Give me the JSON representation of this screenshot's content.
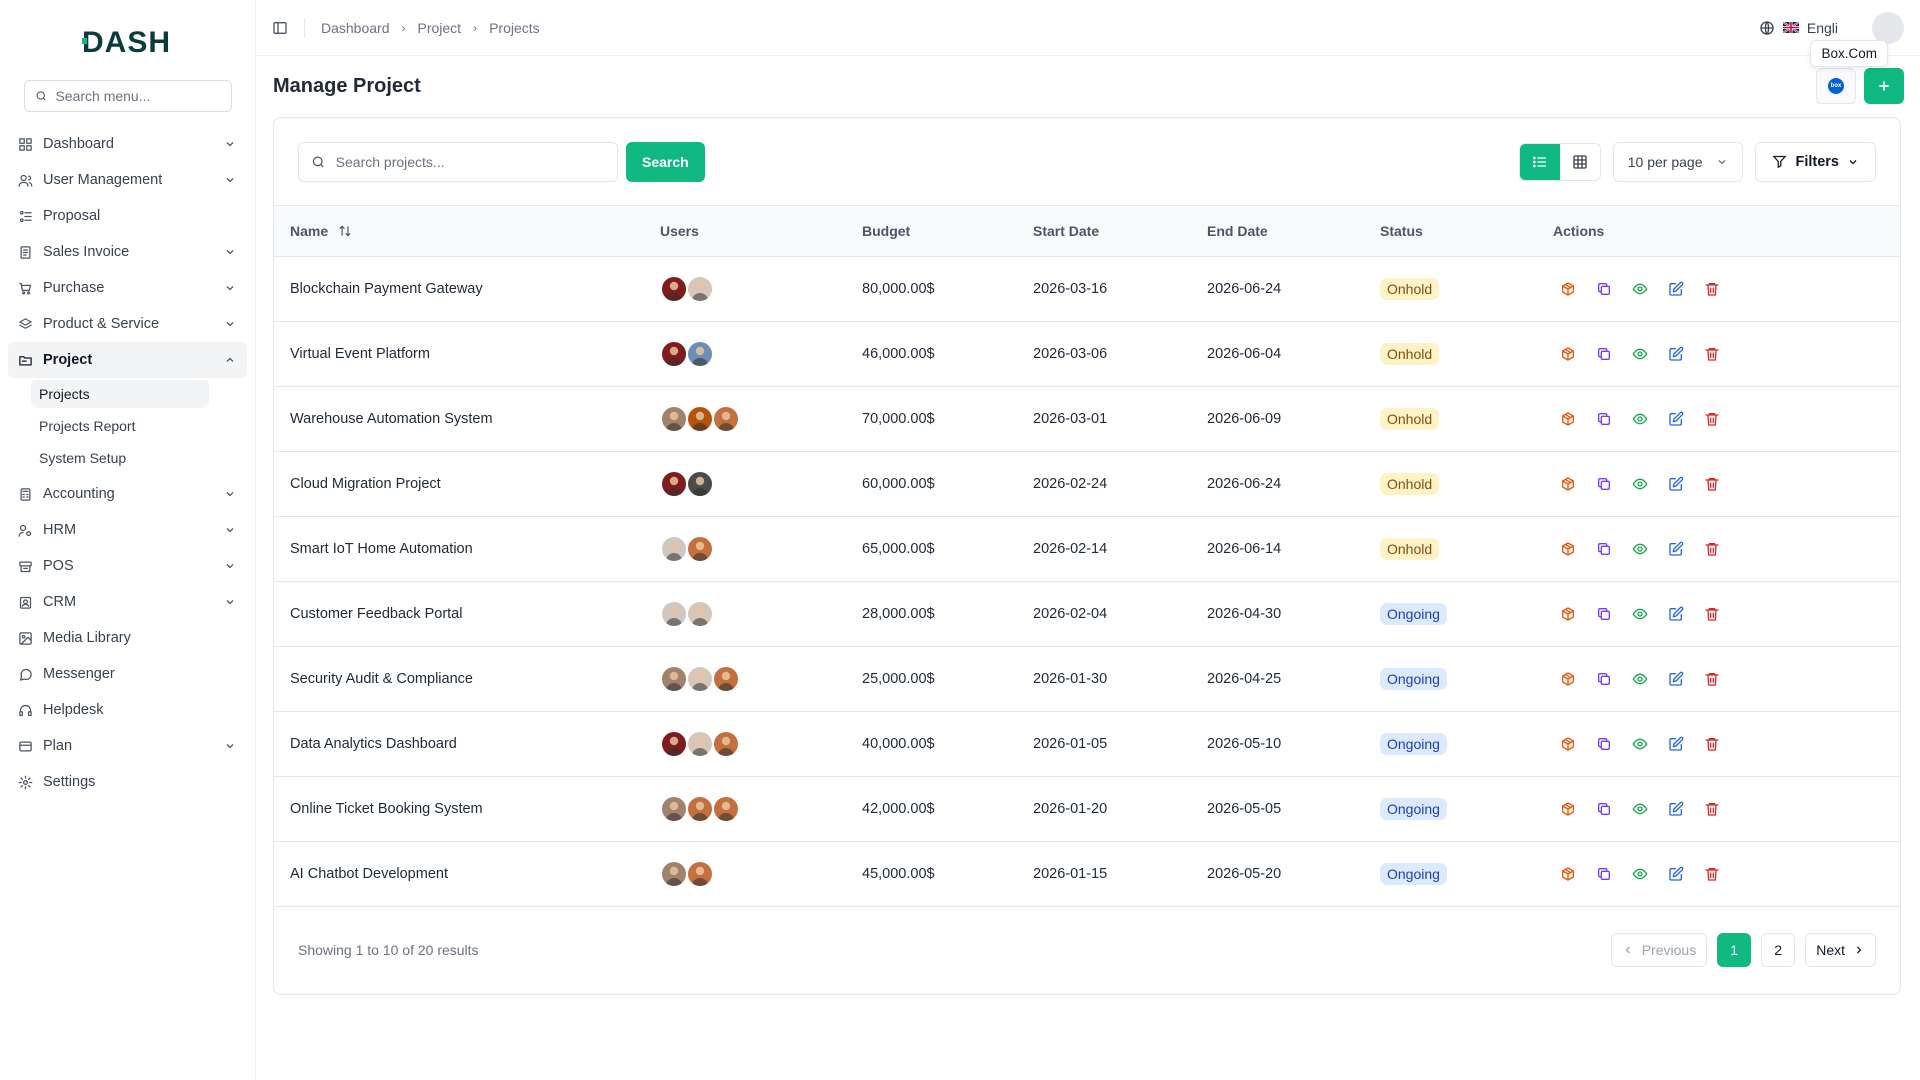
{
  "brand": {
    "logo_text": "DASH"
  },
  "sidebar": {
    "search_placeholder": "Search menu...",
    "items": [
      {
        "label": "Dashboard",
        "icon": "grid-icon",
        "has_chevron": true
      },
      {
        "label": "User Management",
        "icon": "users-icon",
        "has_chevron": true
      },
      {
        "label": "Proposal",
        "icon": "proposal-icon",
        "has_chevron": false
      },
      {
        "label": "Sales Invoice",
        "icon": "invoice-icon",
        "has_chevron": true
      },
      {
        "label": "Purchase",
        "icon": "cart-icon",
        "has_chevron": true
      },
      {
        "label": "Product & Service",
        "icon": "layers-icon",
        "has_chevron": true
      },
      {
        "label": "Project",
        "icon": "folder-icon",
        "has_chevron": true,
        "active": true,
        "children": [
          {
            "label": "Projects",
            "active": true
          },
          {
            "label": "Projects Report"
          },
          {
            "label": "System Setup"
          }
        ]
      },
      {
        "label": "Accounting",
        "icon": "calculator-icon",
        "has_chevron": true
      },
      {
        "label": "HRM",
        "icon": "hrm-icon",
        "has_chevron": true
      },
      {
        "label": "POS",
        "icon": "pos-icon",
        "has_chevron": true
      },
      {
        "label": "CRM",
        "icon": "crm-icon",
        "has_chevron": true
      },
      {
        "label": "Media Library",
        "icon": "image-icon",
        "has_chevron": false
      },
      {
        "label": "Messenger",
        "icon": "message-icon",
        "has_chevron": false
      },
      {
        "label": "Helpdesk",
        "icon": "headset-icon",
        "has_chevron": false
      },
      {
        "label": "Plan",
        "icon": "card-icon",
        "has_chevron": true
      },
      {
        "label": "Settings",
        "icon": "gear-icon",
        "has_chevron": false
      }
    ]
  },
  "topbar": {
    "breadcrumb": [
      "Dashboard",
      "Project",
      "Projects"
    ],
    "language": "Engli",
    "tooltip": "Box.Com"
  },
  "page": {
    "title": "Manage Project"
  },
  "toolbar": {
    "search_placeholder": "Search projects...",
    "search_button": "Search",
    "per_page": "10 per page",
    "filters": "Filters"
  },
  "table": {
    "columns": [
      "Name",
      "Users",
      "Budget",
      "Start Date",
      "End Date",
      "Status",
      "Actions"
    ],
    "rows": [
      {
        "name": "Blockchain Payment Gateway",
        "users": [
          "#7f1d1d",
          "#d6c7b8"
        ],
        "budget": "80,000.00$",
        "start": "2026-03-16",
        "end": "2026-06-24",
        "status": "Onhold"
      },
      {
        "name": "Virtual Event Platform",
        "users": [
          "#7f1d1d",
          "#6b8fb5"
        ],
        "budget": "46,000.00$",
        "start": "2026-03-06",
        "end": "2026-06-04",
        "status": "Onhold"
      },
      {
        "name": "Warehouse Automation System",
        "users": [
          "#a0826d",
          "#b45309",
          "#c2703d"
        ],
        "budget": "70,000.00$",
        "start": "2026-03-01",
        "end": "2026-06-09",
        "status": "Onhold"
      },
      {
        "name": "Cloud Migration Project",
        "users": [
          "#7f1d1d",
          "#4b4b4b"
        ],
        "budget": "60,000.00$",
        "start": "2026-02-24",
        "end": "2026-06-24",
        "status": "Onhold"
      },
      {
        "name": "Smart IoT Home Automation",
        "users": [
          "#cfc8c0",
          "#c2703d"
        ],
        "budget": "65,000.00$",
        "start": "2026-02-14",
        "end": "2026-06-14",
        "status": "Onhold"
      },
      {
        "name": "Customer Feedback Portal",
        "users": [
          "#cfc8c0",
          "#d6c7b8"
        ],
        "budget": "28,000.00$",
        "start": "2026-02-04",
        "end": "2026-04-30",
        "status": "Ongoing"
      },
      {
        "name": "Security Audit & Compliance",
        "users": [
          "#a0826d",
          "#d6c7b8",
          "#c2703d"
        ],
        "budget": "25,000.00$",
        "start": "2026-01-30",
        "end": "2026-04-25",
        "status": "Ongoing"
      },
      {
        "name": "Data Analytics Dashboard",
        "users": [
          "#7f1d1d",
          "#d6c7b8",
          "#c2703d"
        ],
        "budget": "40,000.00$",
        "start": "2026-01-05",
        "end": "2026-05-10",
        "status": "Ongoing"
      },
      {
        "name": "Online Ticket Booking System",
        "users": [
          "#a0826d",
          "#c2703d",
          "#c2703d"
        ],
        "budget": "42,000.00$",
        "start": "2026-01-20",
        "end": "2026-05-05",
        "status": "Ongoing"
      },
      {
        "name": "AI Chatbot Development",
        "users": [
          "#a0826d",
          "#c2703d"
        ],
        "budget": "45,000.00$",
        "start": "2026-01-15",
        "end": "2026-05-20",
        "status": "Ongoing"
      }
    ],
    "action_icons": [
      "package-icon",
      "copy-icon",
      "eye-icon",
      "edit-icon",
      "trash-icon"
    ]
  },
  "pagination": {
    "summary": "Showing 1 to 10 of 20 results",
    "previous": "Previous",
    "pages": [
      "1",
      "2"
    ],
    "current": "1",
    "next": "Next"
  },
  "colors": {
    "accent": "#10b981",
    "onhold_bg": "#fef3c7",
    "ongoing_bg": "#dbeafe"
  }
}
